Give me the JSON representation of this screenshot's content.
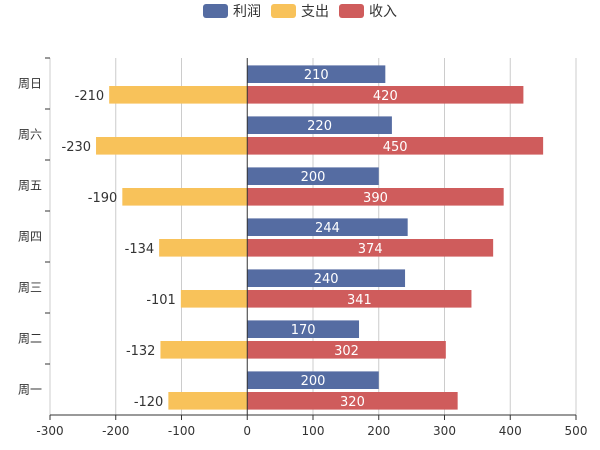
{
  "chart_data": {
    "type": "bar",
    "orientation": "horizontal",
    "categories": [
      "周一",
      "周二",
      "周三",
      "周四",
      "周五",
      "周六",
      "周日"
    ],
    "series": [
      {
        "name": "利润",
        "values": [
          200,
          170,
          240,
          244,
          200,
          220,
          210
        ],
        "color": "#556ca2"
      },
      {
        "name": "支出",
        "values": [
          -120,
          -132,
          -101,
          -134,
          -190,
          -230,
          -210
        ],
        "color": "#f8c25a"
      },
      {
        "name": "收入",
        "values": [
          320,
          302,
          341,
          374,
          390,
          450,
          420
        ],
        "color": "#cf5c5c"
      }
    ],
    "xlim": [
      -300,
      500
    ],
    "xticks": [
      "-300",
      "-200",
      "-100",
      "0",
      "100",
      "200",
      "300",
      "400",
      "500"
    ],
    "grid": "vertical",
    "legend_position": "top-center",
    "title": "",
    "xlabel": "",
    "ylabel": ""
  }
}
